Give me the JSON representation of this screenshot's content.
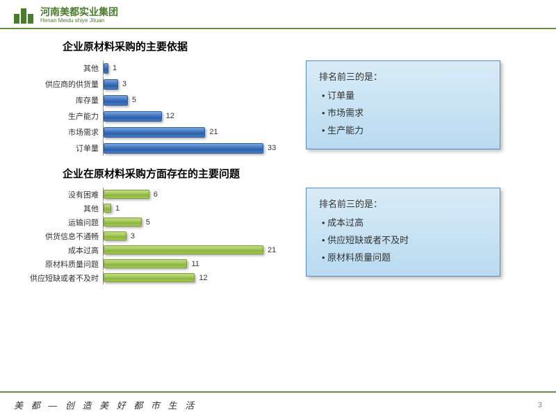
{
  "header": {
    "company_name": "河南美都实业集团",
    "company_sub": "Henan Meidu shiye Jituan"
  },
  "section1": {
    "title": "企业原材料采购的主要依据",
    "chart": {
      "type": "bar",
      "max_value": 33,
      "bar_color_class": "bar-blue",
      "rows": [
        {
          "label": "其他",
          "value": 1
        },
        {
          "label": "供应商的供货量",
          "value": 3
        },
        {
          "label": "库存量",
          "value": 5
        },
        {
          "label": "生产能力",
          "value": 12
        },
        {
          "label": "市场需求",
          "value": 21
        },
        {
          "label": "订单量",
          "value": 33
        }
      ]
    },
    "info": {
      "title": "排名前三的是：",
      "items": [
        "订单量",
        "市场需求",
        "生产能力"
      ],
      "box_class": "info-box-blue"
    }
  },
  "section2": {
    "title": "企业在原材料采购方面存在的主要问题",
    "chart": {
      "type": "bar",
      "max_value": 21,
      "bar_color_class": "bar-green",
      "rows": [
        {
          "label": "没有困难",
          "value": 6
        },
        {
          "label": "其他",
          "value": 1
        },
        {
          "label": "运输问题",
          "value": 5
        },
        {
          "label": "供货信息不通畅",
          "value": 3
        },
        {
          "label": "成本过高",
          "value": 21
        },
        {
          "label": "原材料质量问题",
          "value": 11
        },
        {
          "label": "供应短缺或者不及时",
          "value": 12
        }
      ]
    },
    "info": {
      "title": "排名前三的是：",
      "items": [
        "成本过高",
        "供应短缺或者不及时",
        "原材料质量问题"
      ],
      "box_class": "info-box-blue"
    }
  },
  "footer": {
    "text": "美 都 — 创 造 美 好 都 市 生 活",
    "page": "3"
  },
  "chart_area_width": 230
}
